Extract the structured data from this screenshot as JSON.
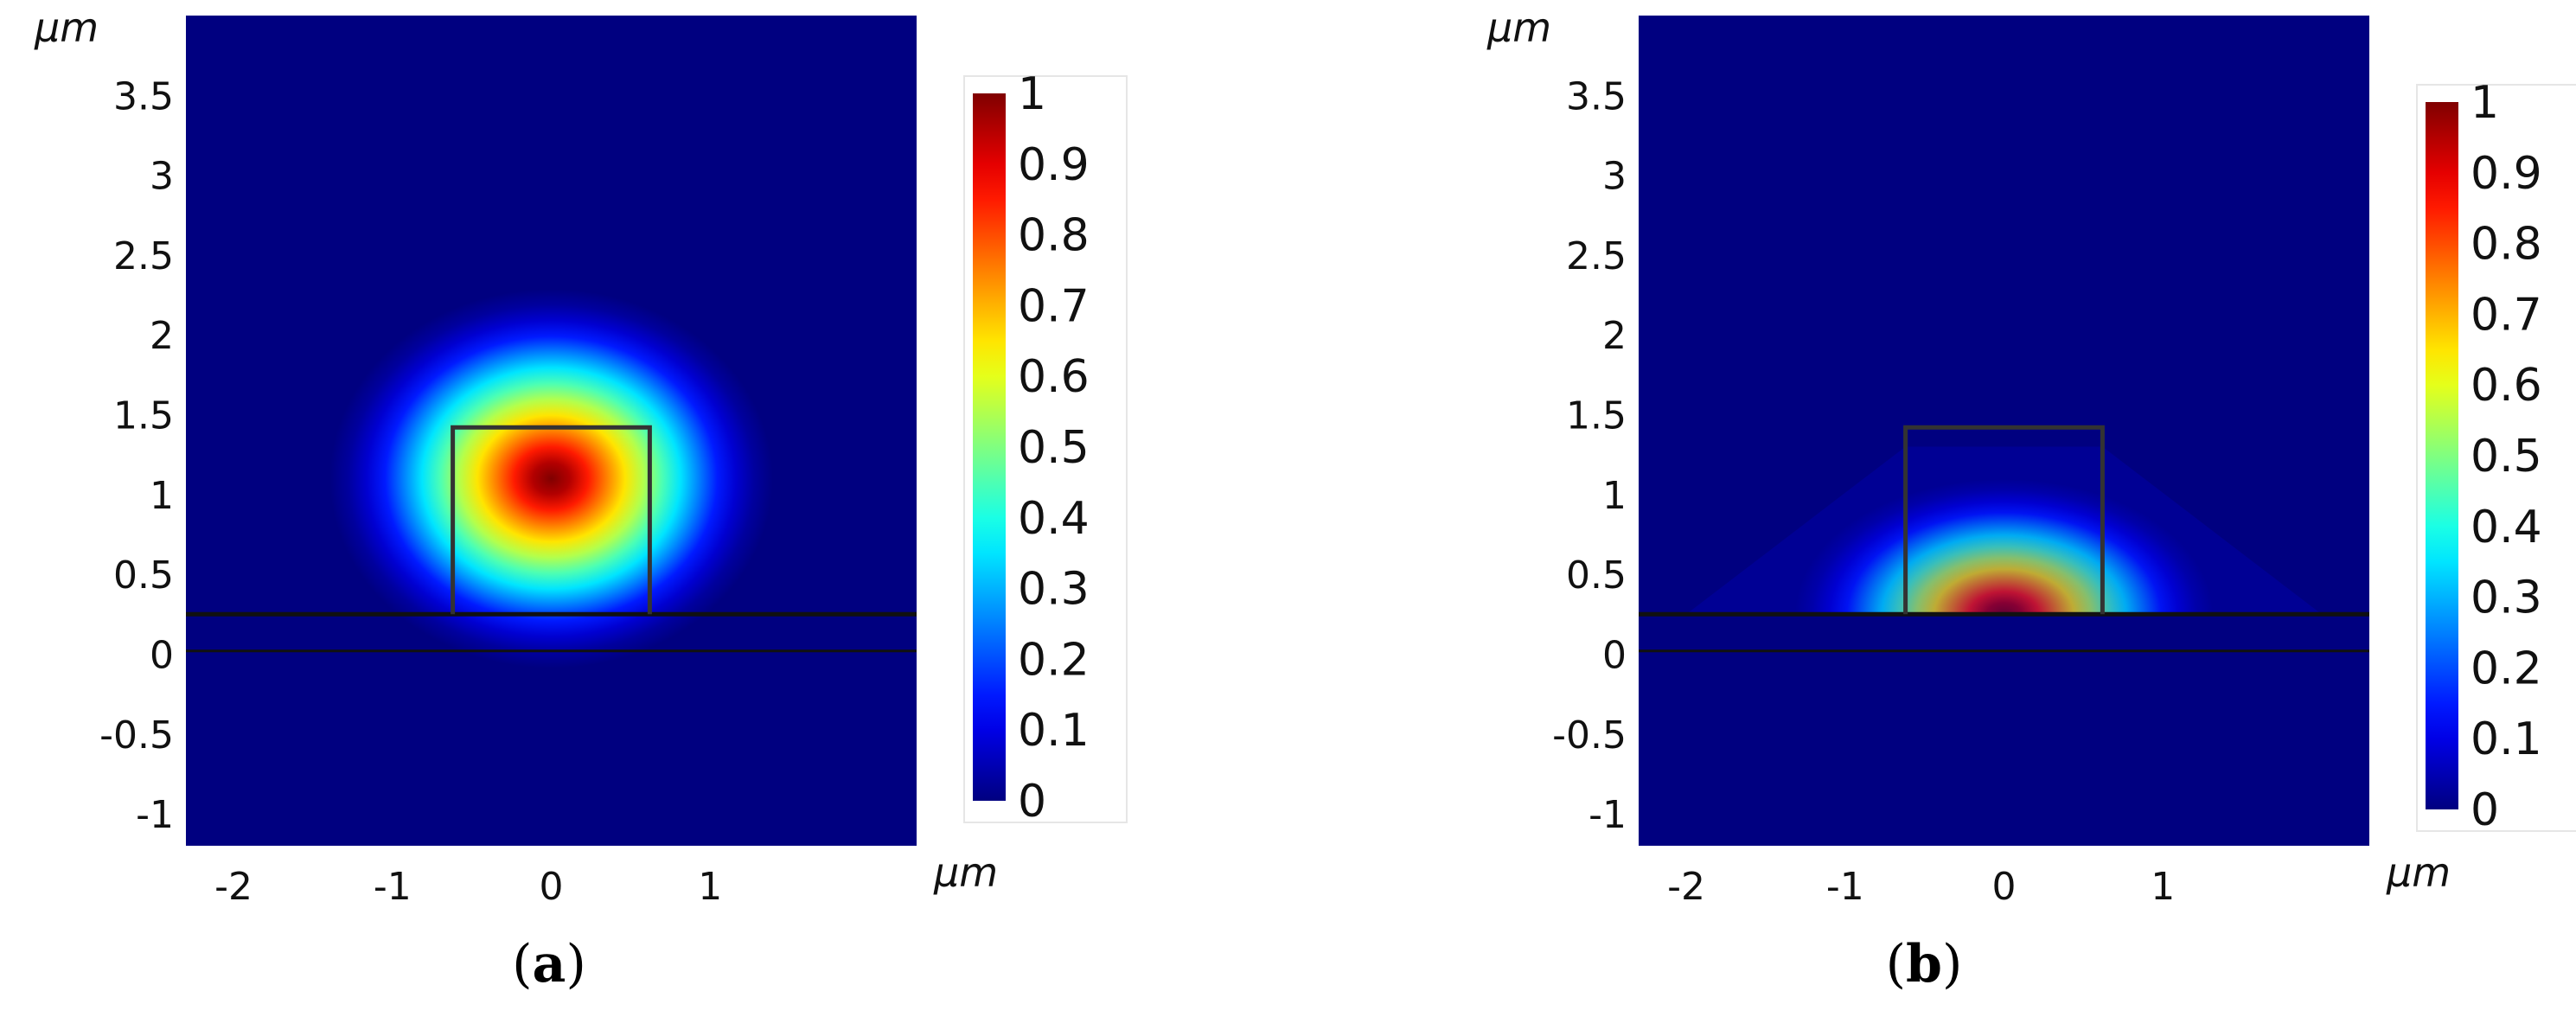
{
  "chart_data": [
    {
      "type": "heatmap",
      "panel_label": "a",
      "x_unit": "μm",
      "y_unit": "μm",
      "xlim": [
        -2.3,
        2.3
      ],
      "ylim": [
        -1.2,
        4.0
      ],
      "x_ticks": [
        "-2",
        "-1",
        "0",
        "1"
      ],
      "x_tick_values": [
        -2,
        -1,
        0,
        1
      ],
      "y_ticks": [
        "3.5",
        "3",
        "2.5",
        "2",
        "1.5",
        "1",
        "0.5",
        "0",
        "-0.5",
        "-1"
      ],
      "y_tick_values": [
        3.5,
        3,
        2.5,
        2,
        1.5,
        1,
        0.5,
        0,
        -0.5,
        -1
      ],
      "colorbar": {
        "range": [
          0,
          1
        ],
        "ticks": [
          "1",
          "0.9",
          "0.8",
          "0.7",
          "0.6",
          "0.5",
          "0.4",
          "0.3",
          "0.2",
          "0.1",
          "0"
        ],
        "tick_values": [
          1,
          0.9,
          0.8,
          0.7,
          0.6,
          0.5,
          0.4,
          0.3,
          0.2,
          0.1,
          0
        ],
        "colormap": "jet"
      },
      "field": {
        "peak_center": [
          0.0,
          1.1
        ],
        "peak_value": 1.0,
        "spread_x": 0.9,
        "spread_y": 0.7,
        "confined_above_substrate": false
      },
      "structure": {
        "waveguide_x": [
          -0.62,
          0.62
        ],
        "waveguide_y": [
          0.25,
          1.42
        ],
        "substrate_lines_y": [
          0.25,
          0.02
        ]
      }
    },
    {
      "type": "heatmap",
      "panel_label": "b",
      "x_unit": "μm",
      "y_unit": "μm",
      "xlim": [
        -2.3,
        2.3
      ],
      "ylim": [
        -1.2,
        4.0
      ],
      "x_ticks": [
        "-2",
        "-1",
        "0",
        "1"
      ],
      "x_tick_values": [
        -2,
        -1,
        0,
        1
      ],
      "y_ticks": [
        "3.5",
        "3",
        "2.5",
        "2",
        "1.5",
        "1",
        "0.5",
        "0",
        "-0.5",
        "-1"
      ],
      "y_tick_values": [
        3.5,
        3,
        2.5,
        2,
        1.5,
        1,
        0.5,
        0,
        -0.5,
        -1
      ],
      "colorbar": {
        "range": [
          0,
          1
        ],
        "ticks": [
          "1",
          "0.9",
          "0.8",
          "0.7",
          "0.6",
          "0.5",
          "0.4",
          "0.3",
          "0.2",
          "0.1",
          "0"
        ],
        "tick_values": [
          1,
          0.9,
          0.8,
          0.7,
          0.6,
          0.5,
          0.4,
          0.3,
          0.2,
          0.1,
          0
        ],
        "colormap": "jet"
      },
      "field": {
        "peak_center": [
          0.0,
          0.25
        ],
        "peak_value": 1.0,
        "spread_x": 0.85,
        "spread_y": 0.5,
        "confined_above_substrate": true
      },
      "structure": {
        "waveguide_x": [
          -0.62,
          0.62
        ],
        "waveguide_y": [
          0.25,
          1.42
        ],
        "substrate_lines_y": [
          0.25,
          0.02
        ]
      }
    }
  ]
}
